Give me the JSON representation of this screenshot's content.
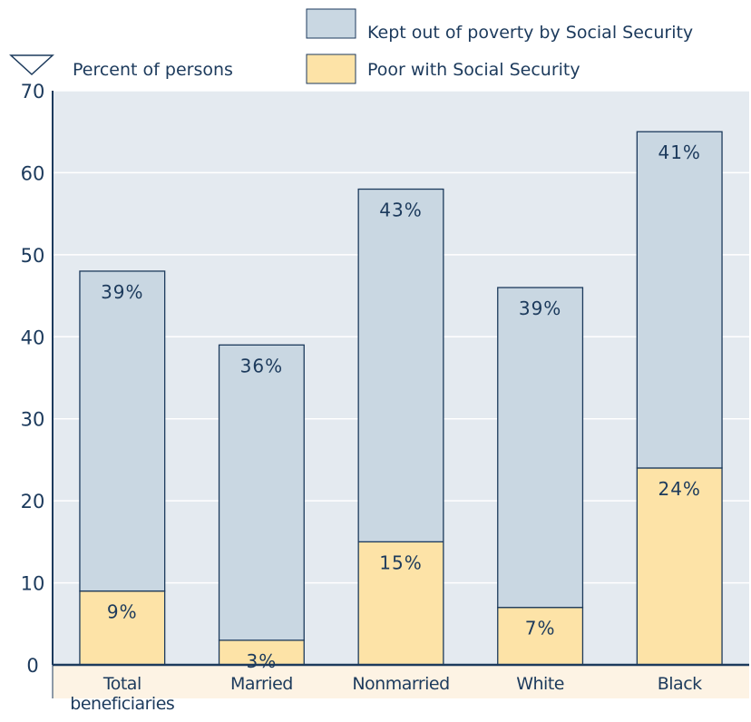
{
  "legend": {
    "units_label": "Percent of persons",
    "items": [
      {
        "label": "Kept out of poverty by Social Security",
        "color": "#c9d7e2"
      },
      {
        "label": "Poor with Social Security",
        "color": "#fde3a7"
      }
    ]
  },
  "colors": {
    "plot_background": "#e4eaf0",
    "category_band": "#fdf3e4",
    "gridline": "#ffffff",
    "axis": "#1c3a5c",
    "text": "#1c3a5c"
  },
  "chart_data": {
    "type": "bar",
    "stacked": true,
    "categories": [
      [
        "Total",
        "beneficiaries"
      ],
      [
        "Married"
      ],
      [
        "Nonmarried"
      ],
      [
        "White"
      ],
      [
        "Black"
      ]
    ],
    "series": [
      {
        "name": "Poor with Social Security",
        "values": [
          9,
          3,
          15,
          7,
          24
        ],
        "labels": [
          "9%",
          "3%",
          "15%",
          "7%",
          "24%"
        ]
      },
      {
        "name": "Kept out of poverty by Social Security",
        "values": [
          39,
          36,
          43,
          39,
          41
        ],
        "labels": [
          "39%",
          "36%",
          "43%",
          "39%",
          "41%"
        ]
      }
    ],
    "ylim": [
      0,
      70
    ],
    "yticks": [
      0,
      10,
      20,
      30,
      40,
      50,
      60,
      70
    ],
    "xlabel": "",
    "ylabel": "Percent of persons",
    "grid": true,
    "legend_position": "top"
  }
}
